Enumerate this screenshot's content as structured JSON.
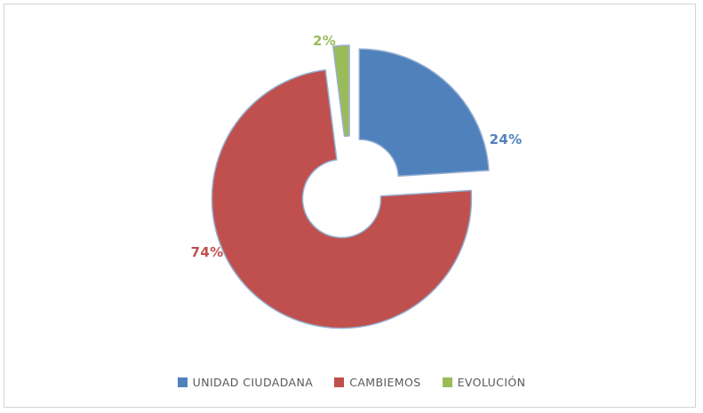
{
  "chart_data": {
    "type": "pie",
    "variant": "exploded-doughnut",
    "title": "",
    "units": "%",
    "legend_position": "bottom",
    "hole_ratio": 0.3,
    "explode_ratio": 0.1,
    "start_angle_deg": 0,
    "direction": "clockwise",
    "series": [
      {
        "name": "UNIDAD CIUDADANA",
        "slug": "unidad-ciudadana",
        "value": 24,
        "label": "24%",
        "color": "#4F81BD"
      },
      {
        "name": "CAMBIEMOS",
        "slug": "cambiemos",
        "value": 74,
        "label": "74%",
        "color": "#C0504D"
      },
      {
        "name": "EVOLUCIÓN",
        "slug": "evolucion",
        "value": 2,
        "label": "2%",
        "color": "#9BBB59"
      }
    ]
  },
  "colors": {
    "canvas_border": "#D3D3D3",
    "slice_outline": "#96AFD2",
    "legend_text": "#595959",
    "background": "#FFFFFF"
  }
}
